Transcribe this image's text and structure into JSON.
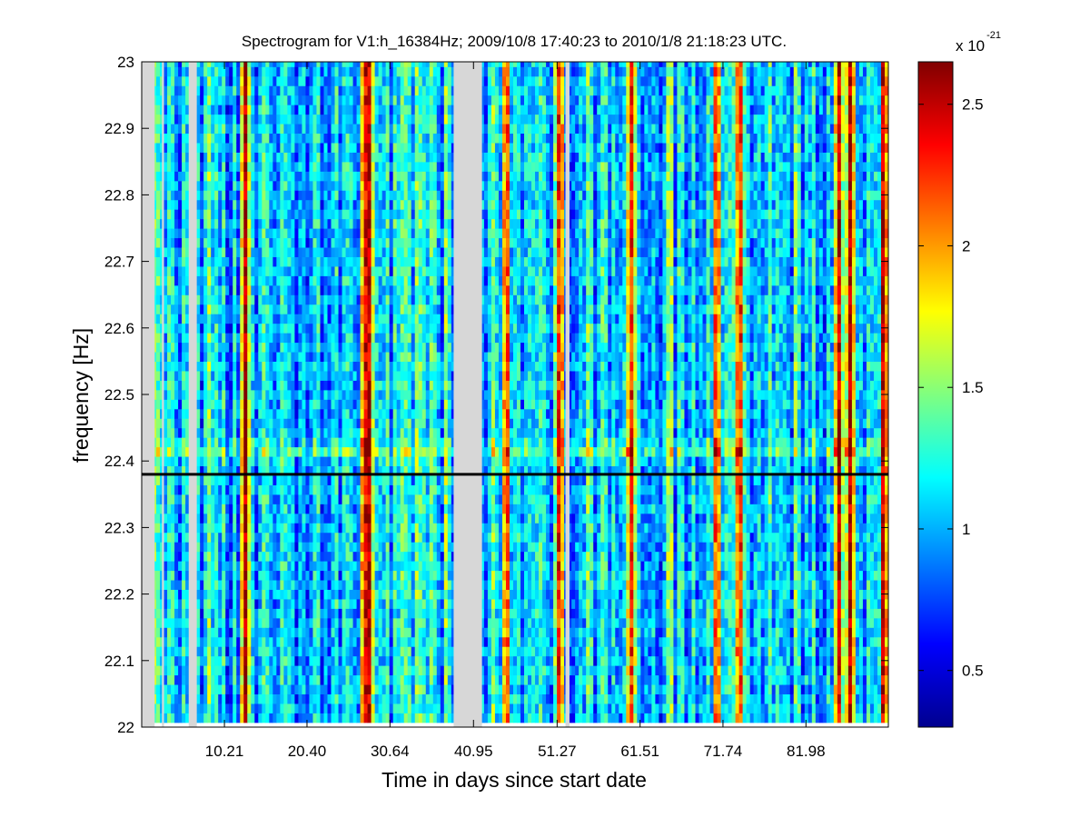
{
  "chart_data": {
    "type": "heatmap",
    "title": "Spectrogram for V1:h_16384Hz;  2009/10/8 17:40:23 to 2010/1/8 21:18:23 UTC.",
    "xlabel": "Time in days since start date",
    "ylabel": "frequency [Hz]",
    "xlim": [
      0,
      92.15
    ],
    "ylim": [
      22,
      23
    ],
    "x_ticks": [
      "10.21",
      "20.40",
      "30.64",
      "40.95",
      "51.27",
      "61.51",
      "71.74",
      "81.98"
    ],
    "x_tick_values": [
      10.21,
      20.4,
      30.64,
      40.95,
      51.27,
      61.51,
      71.74,
      81.98
    ],
    "y_ticks": [
      "22",
      "22.1",
      "22.2",
      "22.3",
      "22.4",
      "22.5",
      "22.6",
      "22.7",
      "22.8",
      "22.9",
      "23"
    ],
    "y_tick_values": [
      22,
      22.1,
      22.2,
      22.3,
      22.4,
      22.5,
      22.6,
      22.7,
      22.8,
      22.9,
      23
    ],
    "colorbar": {
      "colormap": "jet",
      "range": [
        0.3,
        2.65
      ],
      "multiplier_base": "x 10",
      "multiplier_exponent": "-21",
      "ticks": [
        "0.5",
        "1",
        "1.5",
        "2",
        "2.5"
      ],
      "tick_values": [
        0.5,
        1.0,
        1.5,
        2.0,
        2.5
      ]
    },
    "gaps_days": [
      [
        0,
        1.6
      ],
      [
        2.5,
        2.75
      ],
      [
        5.8,
        6.8
      ],
      [
        38.5,
        42.0
      ],
      [
        52.3,
        52.8
      ]
    ],
    "high_power_bands_days": [
      {
        "day": 12.8,
        "level": 2.6
      },
      {
        "day": 27.5,
        "level": 2.5
      },
      {
        "day": 28.1,
        "level": 2.5
      },
      {
        "day": 45.0,
        "level": 2.3
      },
      {
        "day": 51.6,
        "level": 2.4
      },
      {
        "day": 60.4,
        "level": 2.3
      },
      {
        "day": 71.0,
        "level": 2.4
      },
      {
        "day": 73.8,
        "level": 2.4
      },
      {
        "day": 86.0,
        "level": 2.5
      },
      {
        "day": 87.5,
        "level": 2.6
      },
      {
        "day": 91.6,
        "level": 2.6
      }
    ],
    "reference_line": {
      "frequency_hz": 22.38,
      "color": "#000000"
    },
    "colors": {
      "gap": "#d7d7d7",
      "axes": "#000000",
      "background": "#ffffff"
    }
  }
}
